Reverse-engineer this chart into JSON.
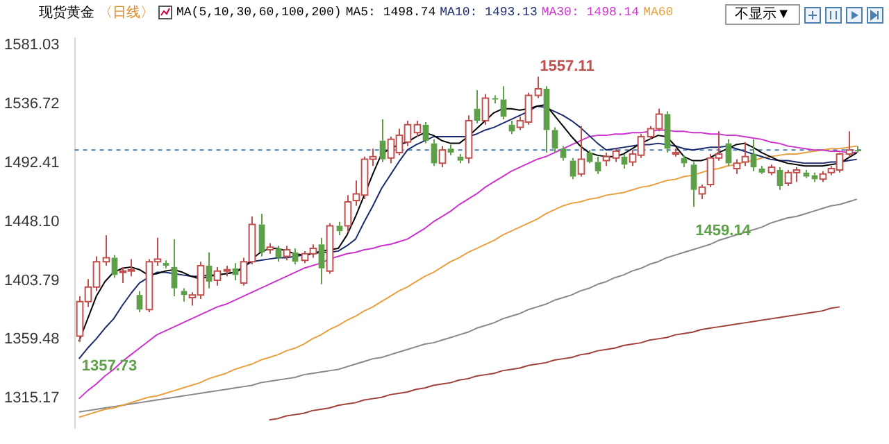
{
  "chart_data": {
    "type": "candlestick",
    "title": "现货黄金",
    "subtitle": "〈日线〉",
    "legend_title": "MA(5,10,30,60,100,200)",
    "legend": "top",
    "tick_labels": "y",
    "categories": [
      null,
      null,
      null,
      null,
      null,
      null,
      null,
      null,
      null,
      null,
      null,
      null,
      null,
      null,
      null,
      null,
      null,
      null,
      null,
      null,
      null,
      null,
      null,
      null,
      null,
      null,
      null,
      null,
      null,
      null,
      null,
      null,
      null,
      null,
      null,
      null,
      null,
      null,
      null,
      null,
      null,
      null,
      null,
      null,
      null,
      null,
      null,
      null,
      null,
      null,
      null,
      null,
      null,
      null,
      null,
      null,
      null,
      null,
      null,
      null,
      null,
      null,
      null,
      null,
      null,
      null,
      null,
      null,
      null,
      null,
      null,
      null,
      null,
      null,
      null,
      null,
      null,
      null,
      null,
      null,
      null,
      null,
      null,
      null,
      null,
      null,
      null,
      null,
      null,
      null,
      null
    ],
    "ohlc": [
      [
        1362,
        1392,
        1357.73,
        1388
      ],
      [
        1388,
        1405,
        1384,
        1399
      ],
      [
        1399,
        1422,
        1396,
        1418
      ],
      [
        1418,
        1438,
        1415,
        1421
      ],
      [
        1421,
        1423,
        1406,
        1408
      ],
      [
        1410,
        1414,
        1402,
        1411
      ],
      [
        1411,
        1420,
        1407,
        1412
      ],
      [
        1393,
        1396,
        1380,
        1382
      ],
      [
        1382,
        1420,
        1380,
        1418
      ],
      [
        1418,
        1436,
        1415,
        1420
      ],
      [
        1417,
        1419,
        1413,
        1415
      ],
      [
        1414,
        1435,
        1392,
        1398
      ],
      [
        1396,
        1398,
        1388,
        1393
      ],
      [
        1391,
        1395,
        1385,
        1393
      ],
      [
        1393,
        1418,
        1390,
        1415
      ],
      [
        1415,
        1425,
        1398,
        1403
      ],
      [
        1404,
        1414,
        1400,
        1411
      ],
      [
        1411,
        1415,
        1407,
        1412
      ],
      [
        1413,
        1417,
        1404,
        1408
      ],
      [
        1402,
        1421,
        1400,
        1418
      ],
      [
        1418,
        1452,
        1416,
        1446
      ],
      [
        1446,
        1454,
        1422,
        1425
      ],
      [
        1427,
        1432,
        1424,
        1429
      ],
      [
        1428,
        1430,
        1418,
        1421
      ],
      [
        1422,
        1430,
        1419,
        1427
      ],
      [
        1425,
        1428,
        1416,
        1418
      ],
      [
        1419,
        1426,
        1417,
        1424
      ],
      [
        1424,
        1431,
        1421,
        1428
      ],
      [
        1431,
        1436,
        1401,
        1413
      ],
      [
        1411,
        1447,
        1409,
        1445
      ],
      [
        1445,
        1448,
        1438,
        1441
      ],
      [
        1445,
        1468,
        1440,
        1463
      ],
      [
        1464,
        1479,
        1460,
        1469
      ],
      [
        1468,
        1497,
        1465,
        1495
      ],
      [
        1495,
        1503,
        1490,
        1497
      ],
      [
        1509,
        1525,
        1493,
        1495
      ],
      [
        1496,
        1512,
        1492,
        1510
      ],
      [
        1500,
        1518,
        1498,
        1513
      ],
      [
        1508,
        1524,
        1505,
        1521
      ],
      [
        1515,
        1524,
        1512,
        1521
      ],
      [
        1521,
        1523,
        1507,
        1509
      ],
      [
        1507,
        1510,
        1490,
        1492
      ],
      [
        1492,
        1505,
        1489,
        1502
      ],
      [
        1503,
        1506,
        1498,
        1500
      ],
      [
        1497,
        1499,
        1492,
        1494
      ],
      [
        1496,
        1528,
        1492,
        1524
      ],
      [
        1533,
        1547,
        1522,
        1524
      ],
      [
        1524,
        1544,
        1521,
        1541
      ],
      [
        1541,
        1543,
        1537,
        1540
      ],
      [
        1540,
        1550,
        1525,
        1527
      ],
      [
        1521,
        1524,
        1514,
        1516
      ],
      [
        1519,
        1527,
        1517,
        1524
      ],
      [
        1523,
        1545,
        1521,
        1543
      ],
      [
        1543,
        1557.11,
        1541,
        1548
      ],
      [
        1548,
        1550,
        1500,
        1517
      ],
      [
        1517,
        1519,
        1500,
        1503
      ],
      [
        1503,
        1505,
        1494,
        1496
      ],
      [
        1494,
        1496,
        1480,
        1482
      ],
      [
        1484,
        1520,
        1482,
        1495
      ],
      [
        1500,
        1502,
        1492,
        1493
      ],
      [
        1493,
        1497,
        1484,
        1486
      ],
      [
        1494,
        1500,
        1490,
        1497
      ],
      [
        1496,
        1503,
        1493,
        1501
      ],
      [
        1497,
        1499,
        1488,
        1491
      ],
      [
        1493,
        1502,
        1490,
        1499
      ],
      [
        1498,
        1514,
        1496,
        1512
      ],
      [
        1512,
        1520,
        1510,
        1518
      ],
      [
        1518,
        1533,
        1516,
        1529
      ],
      [
        1529,
        1531,
        1500,
        1503
      ],
      [
        1500,
        1503,
        1497,
        1500
      ],
      [
        1496,
        1498,
        1489,
        1492
      ],
      [
        1491,
        1493,
        1459.14,
        1472
      ],
      [
        1469,
        1476,
        1465,
        1474
      ],
      [
        1476,
        1499,
        1474,
        1496
      ],
      [
        1496,
        1516,
        1494,
        1499
      ],
      [
        1507,
        1510,
        1490,
        1492
      ],
      [
        1488,
        1495,
        1484,
        1492
      ],
      [
        1493,
        1508,
        1490,
        1497
      ],
      [
        1499,
        1510,
        1486,
        1489
      ],
      [
        1488,
        1490,
        1484,
        1485
      ],
      [
        1485,
        1491,
        1483,
        1489
      ],
      [
        1487,
        1489,
        1472,
        1475
      ],
      [
        1477,
        1487,
        1475,
        1485
      ],
      [
        1485,
        1489,
        1478,
        1487
      ],
      [
        1485,
        1487,
        1481,
        1482
      ],
      [
        1483,
        1485,
        1478,
        1480
      ],
      [
        1480,
        1486,
        1478,
        1484
      ],
      [
        1485,
        1490,
        1483,
        1488
      ],
      [
        1487,
        1500,
        1485,
        1499
      ],
      [
        1499,
        1516,
        1497,
        1502
      ],
      [
        1502,
        1505,
        1500,
        1501
      ]
    ],
    "series": [
      {
        "type": "line",
        "name": "MA5: 1498.74",
        "color": "#000000",
        "values": [
          1358,
          1375,
          1392,
          1403,
          1410,
          1413,
          1414,
          1412,
          1408,
          1409,
          1411,
          1412,
          1410,
          1407,
          1405,
          1407,
          1408,
          1409,
          1410,
          1413,
          1420,
          1425,
          1428,
          1428,
          1426,
          1424,
          1423,
          1424,
          1426,
          1427,
          1428,
          1438,
          1452,
          1468,
          1484,
          1499,
          1503,
          1506,
          1508,
          1512,
          1515,
          1513,
          1509,
          1507,
          1507,
          1512,
          1518,
          1524,
          1530,
          1533,
          1533,
          1532,
          1533,
          1535,
          1536,
          1528,
          1520,
          1512,
          1505,
          1500,
          1498,
          1497,
          1497,
          1499,
          1503,
          1507,
          1510,
          1513,
          1512,
          1505,
          1497,
          1494,
          1494,
          1496,
          1500,
          1503,
          1506,
          1507,
          1504,
          1500,
          1497,
          1494,
          1492,
          1491,
          1490,
          1490,
          1490,
          1491,
          1492,
          1496,
          1500
        ]
      },
      {
        "type": "line",
        "name": "MA10: 1493.13",
        "color": "#1c2a6e",
        "values": [
          1345,
          1353,
          1360,
          1368,
          1375,
          1385,
          1394,
          1402,
          1406,
          1410,
          1410,
          1409,
          1408,
          1407,
          1407,
          1408,
          1408,
          1409,
          1410,
          1414,
          1418,
          1419,
          1420,
          1421,
          1421,
          1422,
          1423,
          1424,
          1425,
          1425,
          1426,
          1430,
          1435,
          1448,
          1460,
          1473,
          1483,
          1493,
          1502,
          1506,
          1509,
          1512,
          1512,
          1512,
          1512,
          1512,
          1514,
          1517,
          1519,
          1522,
          1525,
          1528,
          1531,
          1535,
          1534,
          1531,
          1528,
          1524,
          1519,
          1513,
          1507,
          1502,
          1503,
          1504,
          1505,
          1506,
          1506,
          1507,
          1506,
          1505,
          1503,
          1502,
          1503,
          1504,
          1504,
          1505,
          1503,
          1501,
          1499,
          1497,
          1495,
          1494,
          1494,
          1493,
          1492,
          1492,
          1492,
          1493,
          1493,
          1494,
          1495
        ]
      },
      {
        "type": "line",
        "name": "MA30: 1498.14",
        "color": "#cc33cc",
        "values": [
          1315,
          1321,
          1326,
          1332,
          1337,
          1343,
          1348,
          1353,
          1358,
          1363,
          1366,
          1369,
          1372,
          1375,
          1378,
          1381,
          1384,
          1386,
          1389,
          1392,
          1395,
          1398,
          1401,
          1404,
          1407,
          1410,
          1413,
          1415,
          1417,
          1420,
          1422,
          1424,
          1425,
          1427,
          1428,
          1430,
          1431,
          1433,
          1435,
          1439,
          1443,
          1448,
          1452,
          1456,
          1461,
          1465,
          1469,
          1474,
          1478,
          1482,
          1486,
          1489,
          1492,
          1495,
          1497,
          1500,
          1503,
          1506,
          1509,
          1512,
          1513,
          1513,
          1514,
          1514,
          1515,
          1515,
          1516,
          1517,
          1517,
          1516,
          1516,
          1515,
          1515,
          1514,
          1514,
          1513,
          1513,
          1512,
          1511,
          1510,
          1508,
          1507,
          1505,
          1504,
          1503,
          1502,
          1502,
          1501,
          1501,
          1500,
          1500
        ]
      },
      {
        "type": "line",
        "name": "MA60",
        "color": "#e8a040",
        "values": [
          1301,
          1303,
          1305,
          1307,
          1308,
          1310,
          1312,
          1314,
          1316,
          1317,
          1319,
          1321,
          1323,
          1325,
          1327,
          1330,
          1332,
          1334,
          1337,
          1339,
          1341,
          1344,
          1346,
          1348,
          1351,
          1353,
          1356,
          1360,
          1363,
          1367,
          1370,
          1374,
          1377,
          1381,
          1384,
          1388,
          1392,
          1396,
          1399,
          1403,
          1407,
          1410,
          1414,
          1418,
          1421,
          1425,
          1428,
          1431,
          1434,
          1438,
          1441,
          1444,
          1447,
          1450,
          1454,
          1457,
          1460,
          1462,
          1463,
          1465,
          1466,
          1468,
          1469,
          1470,
          1472,
          1474,
          1475,
          1477,
          1479,
          1480,
          1482,
          1483,
          1485,
          1487,
          1488,
          1490,
          1491,
          1493,
          1494,
          1496,
          1497,
          1498,
          1499,
          1499,
          1500,
          1501,
          1502,
          1503,
          1503,
          1504,
          1505
        ]
      },
      {
        "type": "line",
        "color": "#888888",
        "values": [
          1305,
          1306,
          1307,
          1308,
          1309,
          1310,
          1311,
          1312,
          1313,
          1314,
          1315,
          1316,
          1317,
          1318,
          1319,
          1320,
          1321,
          1322,
          1323,
          1324,
          1325,
          1327,
          1328,
          1329,
          1330,
          1331,
          1333,
          1334,
          1335,
          1336,
          1337,
          1339,
          1341,
          1343,
          1345,
          1346,
          1348,
          1350,
          1352,
          1354,
          1356,
          1357,
          1359,
          1361,
          1363,
          1365,
          1368,
          1370,
          1372,
          1375,
          1377,
          1379,
          1382,
          1384,
          1386,
          1389,
          1391,
          1393,
          1396,
          1398,
          1401,
          1403,
          1406,
          1408,
          1411,
          1413,
          1416,
          1418,
          1421,
          1423,
          1425,
          1427,
          1429,
          1431,
          1434,
          1436,
          1438,
          1440,
          1442,
          1444,
          1447,
          1449,
          1451,
          1452,
          1454,
          1456,
          1458,
          1460,
          1461,
          1463,
          1465
        ]
      },
      {
        "type": "line",
        "color": "#a0403a",
        "values": [
          null,
          null,
          null,
          null,
          null,
          null,
          null,
          null,
          null,
          null,
          null,
          null,
          null,
          null,
          null,
          null,
          null,
          null,
          null,
          null,
          null,
          null,
          1299,
          1300,
          1302,
          1303,
          1304,
          1306,
          1307,
          1308,
          1310,
          1311,
          1312,
          1314,
          1315,
          1316,
          1318,
          1319,
          1320,
          1322,
          1323,
          1325,
          1326,
          1327,
          1329,
          1330,
          1332,
          1333,
          1334,
          1336,
          1337,
          1338,
          1340,
          1341,
          1342,
          1344,
          1345,
          1346,
          1348,
          1349,
          1351,
          1352,
          1353,
          1355,
          1356,
          1357,
          1359,
          1360,
          1361,
          1363,
          1364,
          1365,
          1367,
          1368,
          1369,
          1370,
          1371,
          1372,
          1373,
          1374,
          1375,
          1376,
          1377,
          1378,
          1379,
          1380,
          1381,
          1383,
          1384,
          null,
          null
        ]
      }
    ],
    "ylim": [
      1293,
      1586
    ],
    "yticks": [
      1315.17,
      1359.48,
      {
        "value": 1403.79,
        "label": "1403.79"
      },
      {
        "value": 1448.1,
        "label": "1448.10"
      },
      1492.41,
      1536.72,
      1581.03
    ],
    "ref_lines": [
      {
        "axis": "y",
        "value": 1502,
        "color": "#4a7fb0",
        "line_style": "dashed"
      }
    ],
    "annotations": [
      "不显示▼",
      "1557.11",
      "1357.73",
      "1459.14"
    ]
  }
}
